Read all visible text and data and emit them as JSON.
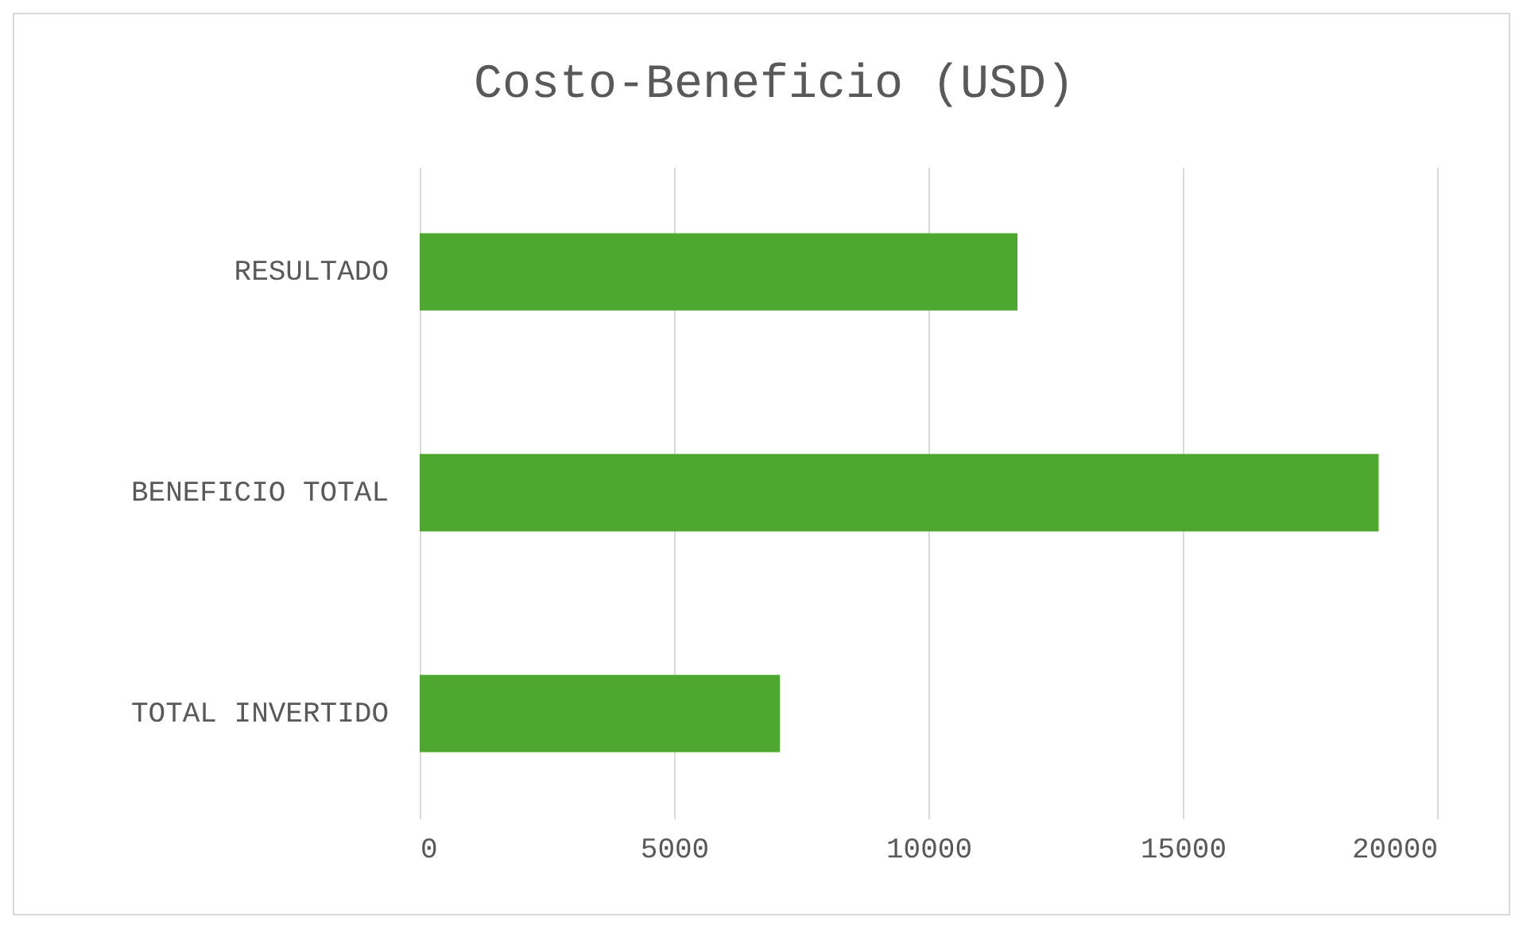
{
  "chart_data": {
    "type": "bar",
    "orientation": "horizontal",
    "title": "Costo-Beneficio (USD)",
    "categories": [
      "RESULTADO",
      "BENEFICIO TOTAL",
      "TOTAL INVERTIDO"
    ],
    "values": [
      11750,
      18850,
      7080
    ],
    "color": "#4ea72e",
    "xlim": [
      0,
      20000
    ],
    "xticks": [
      0,
      5000,
      10000,
      15000,
      20000
    ],
    "grid": "x"
  }
}
